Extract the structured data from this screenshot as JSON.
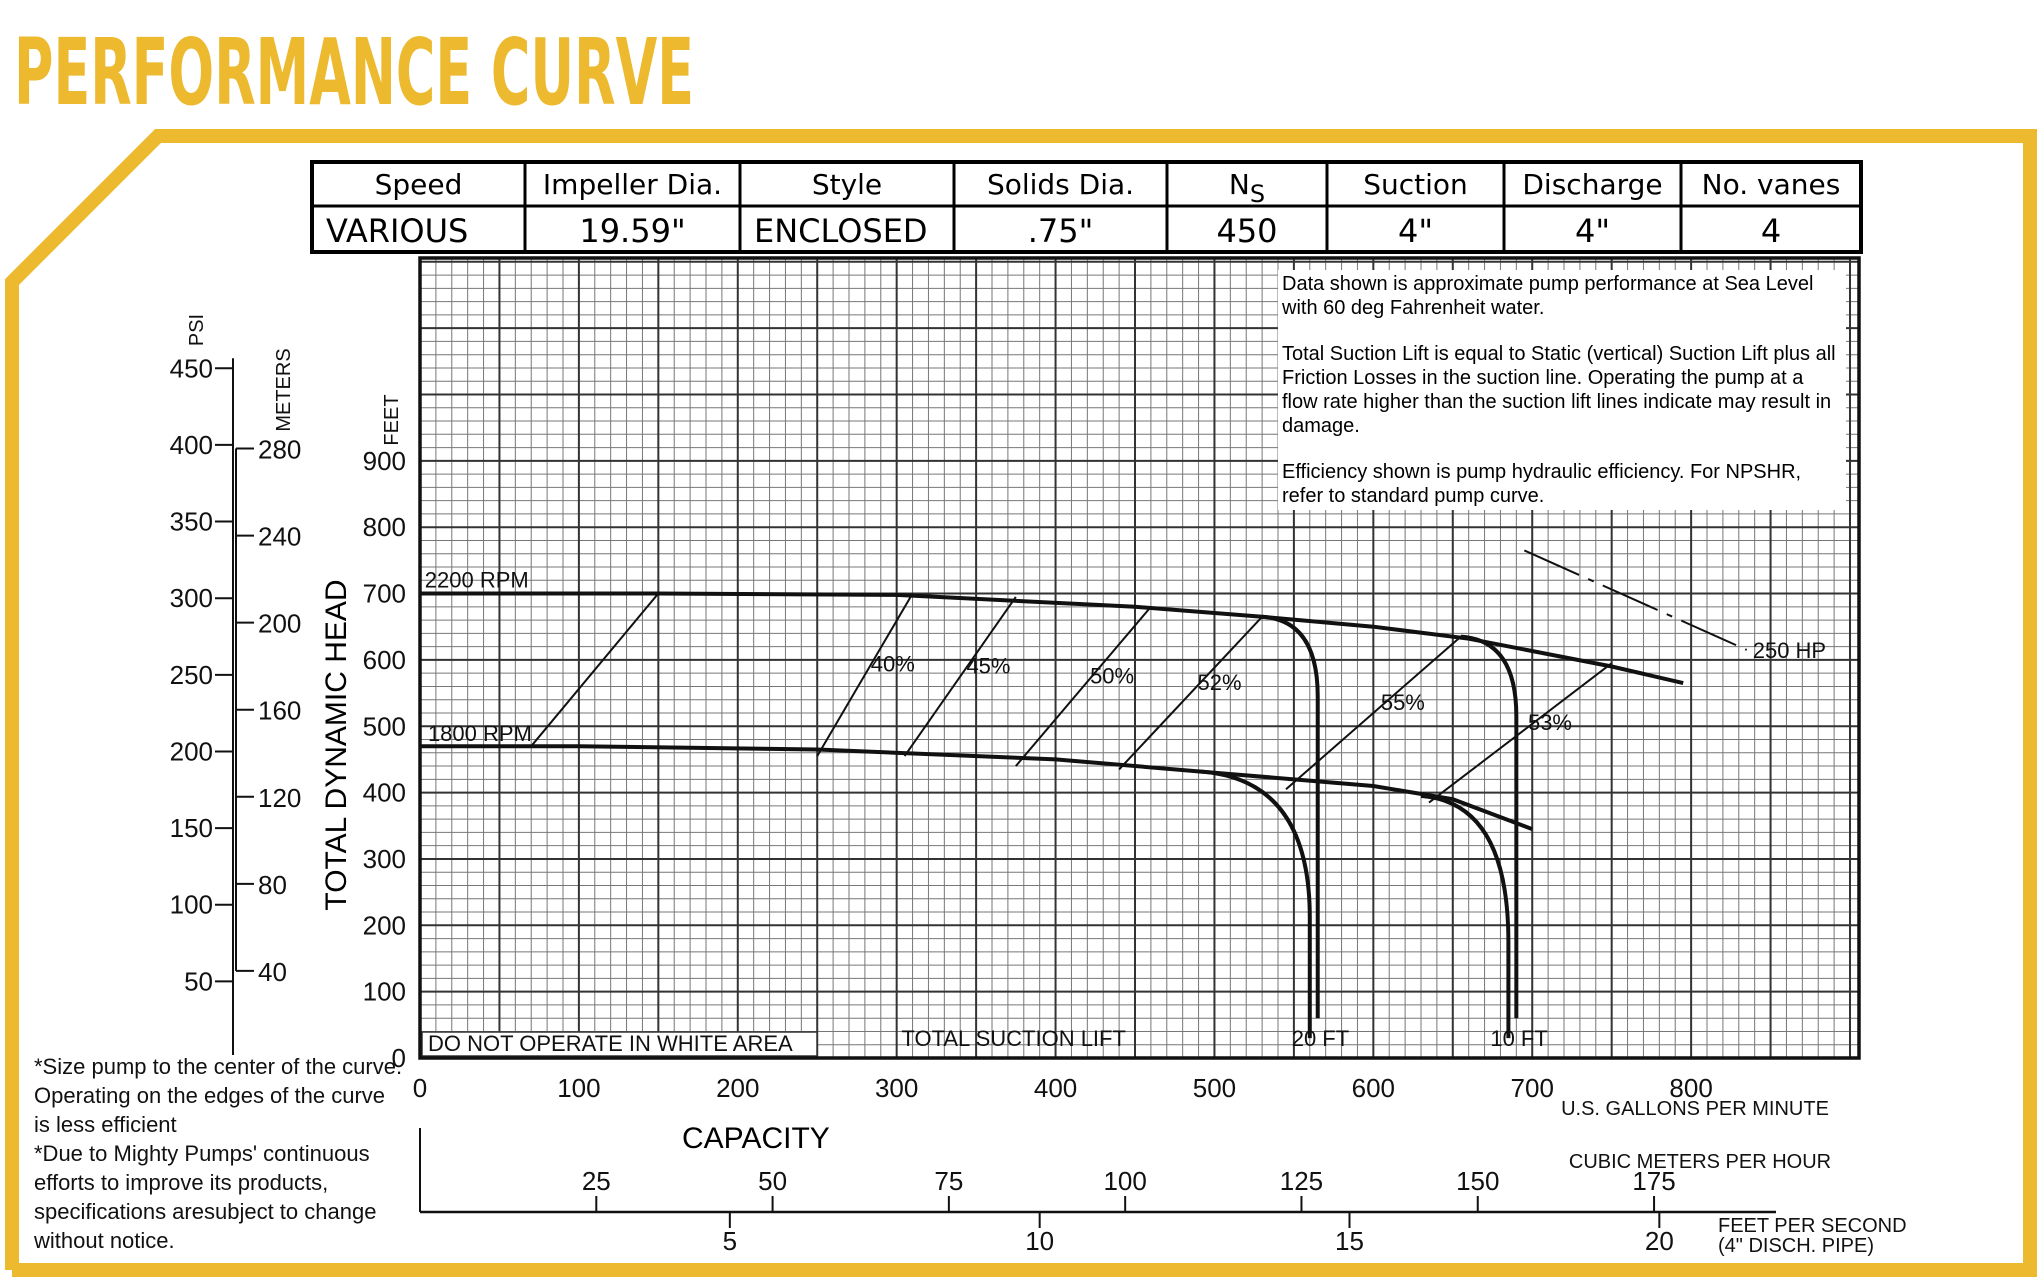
{
  "title": "PERFORMANCE CURVE",
  "colors": {
    "accent": "#ecb92f",
    "ink": "#111111",
    "grid": "#555555"
  },
  "specs": {
    "headers": [
      "Speed",
      "Impeller Dia.",
      "Style",
      "Solids Dia.",
      "N",
      "Suction",
      "Discharge",
      "No. vanes"
    ],
    "ns_subscript": "S",
    "values": [
      "VARIOUS",
      "19.59\"",
      "ENCLOSED",
      ".75\"",
      "450",
      "4\"",
      "4\"",
      "4"
    ]
  },
  "notes": [
    "Data shown is approximate pump performance at Sea Level with 60 deg Fahrenheit water.",
    "Total Suction Lift is equal to Static (vertical) Suction Lift plus all Friction Losses in the suction line. Operating the pump at a flow rate higher than the suction lift lines indicate may result in damage.",
    "Efficiency shown is pump hydraulic efficiency. For NPSHR, refer to standard pump curve."
  ],
  "footnotes": [
    "*Size pump to the center of the curve. Operating on the edges of the curve is less efficient",
    "*Due to Mighty Pumps' continuous efforts to improve its products, specifications aresubject to change without notice."
  ],
  "chart_data": {
    "type": "line",
    "xlabel": "CAPACITY",
    "x_unit": "U.S. GALLONS PER MINUTE",
    "ylabel": "TOTAL DYNAMIC HEAD",
    "y_unit": "FEET",
    "xlim": [
      0,
      900
    ],
    "ylim": [
      0,
      1200
    ],
    "x_ticks": [
      0,
      100,
      200,
      300,
      400,
      500,
      600,
      700,
      800
    ],
    "y_ticks": [
      0,
      100,
      200,
      300,
      400,
      500,
      600,
      700,
      800,
      900
    ],
    "psi_axis": {
      "label": "PSI",
      "ticks": [
        50,
        100,
        150,
        200,
        250,
        300,
        350,
        400,
        450
      ]
    },
    "meters_axis": {
      "label": "METERS",
      "ticks": [
        40,
        80,
        120,
        160,
        200,
        240,
        280
      ]
    },
    "cmh_axis": {
      "label": "CUBIC METERS PER HOUR",
      "ticks": [
        25,
        50,
        75,
        100,
        125,
        150,
        175
      ]
    },
    "fps_axis": {
      "label": "FEET PER SECOND",
      "sublabel": "(4\" DISCH. PIPE)",
      "ticks": [
        5,
        10,
        15,
        20
      ]
    },
    "series": [
      {
        "name": "2200 RPM",
        "x": [
          0,
          150,
          300,
          450,
          530,
          600,
          660,
          750,
          795
        ],
        "y": [
          700,
          700,
          698,
          680,
          665,
          650,
          632,
          590,
          565
        ]
      },
      {
        "name": "1800 RPM",
        "x": [
          0,
          100,
          250,
          400,
          500,
          600,
          650,
          700
        ],
        "y": [
          470,
          470,
          465,
          450,
          430,
          410,
          390,
          345
        ]
      }
    ],
    "suction_lift": {
      "label": "TOTAL SUCTION LIFT",
      "curves": [
        {
          "name": "20 FT",
          "x_vertical": 565,
          "from_2200": [
            530,
            665
          ],
          "from_1800": [
            490,
            432
          ]
        },
        {
          "name": "10 FT",
          "x_vertical": 690,
          "from_2200": [
            655,
            635
          ],
          "from_1800": [
            630,
            395
          ]
        }
      ]
    },
    "efficiency_lines": [
      {
        "name": "40%",
        "x": [
          250,
          310
        ],
        "y": [
          455,
          700
        ]
      },
      {
        "name": "45%",
        "x": [
          305,
          375
        ],
        "y": [
          455,
          695
        ]
      },
      {
        "name": "50%",
        "x": [
          375,
          460
        ],
        "y": [
          440,
          680
        ]
      },
      {
        "name": "52%",
        "x": [
          440,
          530
        ],
        "y": [
          435,
          665
        ]
      },
      {
        "name": "55%",
        "x": [
          545,
          655
        ],
        "y": [
          405,
          635
        ]
      },
      {
        "name": "53%",
        "x": [
          635,
          750
        ],
        "y": [
          385,
          595
        ]
      }
    ],
    "hp_line": {
      "name": "250 HP",
      "x": [
        695,
        835
      ],
      "y": [
        765,
        615
      ]
    },
    "white_area_note": "DO NOT OPERATE IN WHITE AREA"
  }
}
